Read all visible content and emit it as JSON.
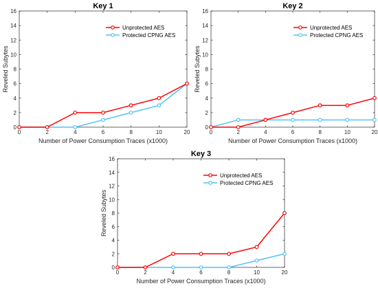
{
  "chart_data": [
    {
      "type": "line",
      "title": "Key 1",
      "xlabel": "Number of Power Consumption Traces (x1000)",
      "ylabel": "Reveled Subytes",
      "categories": [
        "0",
        "2",
        "4",
        "6",
        "8",
        "10",
        "20"
      ],
      "ylim": [
        0,
        16
      ],
      "yticks": [
        "0",
        "2",
        "4",
        "6",
        "8",
        "10",
        "12",
        "14",
        "16"
      ],
      "legend_position": "top-right",
      "grid": false,
      "series": [
        {
          "name": "Unprotected AES",
          "color": "#ff0000",
          "values": [
            0,
            0,
            2,
            2,
            3,
            4,
            6
          ]
        },
        {
          "name": "Protected CPNG AES",
          "color": "#4fc3f7",
          "values": [
            0,
            0,
            0,
            1,
            2,
            3,
            6
          ]
        }
      ]
    },
    {
      "type": "line",
      "title": "Key 2",
      "xlabel": "Number of Power Consumption Traces (x1000)",
      "ylabel": "Reveled Subytes",
      "categories": [
        "0",
        "2",
        "4",
        "6",
        "8",
        "10",
        "20"
      ],
      "ylim": [
        0,
        16
      ],
      "yticks": [
        "0",
        "2",
        "4",
        "6",
        "8",
        "10",
        "12",
        "14",
        "16"
      ],
      "legend_position": "top-right",
      "grid": false,
      "series": [
        {
          "name": "Unprotected AES",
          "color": "#ff0000",
          "values": [
            0,
            0,
            1,
            2,
            3,
            3,
            4
          ]
        },
        {
          "name": "Protected CPNG AES",
          "color": "#4fc3f7",
          "values": [
            0,
            1,
            1,
            1,
            1,
            1,
            1
          ]
        }
      ]
    },
    {
      "type": "line",
      "title": "Key 3",
      "xlabel": "Number of Power Consumption Traces (x1000)",
      "ylabel": "Reveled Subytes",
      "categories": [
        "0",
        "2",
        "4",
        "6",
        "8",
        "10",
        "20"
      ],
      "ylim": [
        0,
        16
      ],
      "yticks": [
        "0",
        "2",
        "4",
        "6",
        "8",
        "10",
        "12",
        "14",
        "16"
      ],
      "legend_position": "top-right",
      "grid": false,
      "series": [
        {
          "name": "Unprotected AES",
          "color": "#ff0000",
          "values": [
            0,
            0,
            2,
            2,
            2,
            3,
            8
          ]
        },
        {
          "name": "Protected CPNG AES",
          "color": "#4fc3f7",
          "values": [
            0,
            0,
            0,
            0,
            0,
            1,
            2
          ]
        }
      ]
    }
  ]
}
